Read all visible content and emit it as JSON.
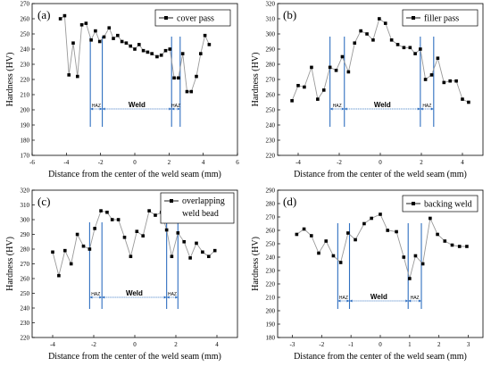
{
  "colors": {
    "series": "#000000",
    "line": "#999999",
    "weld_lines": "#2f6fc0",
    "frame": "#000000"
  },
  "chart_data": [
    {
      "type": "line",
      "panel_label": "(a)",
      "legend": "cover pass",
      "xlabel": "Distance from the center of the weld seam (mm)",
      "ylabel": "Hardness (HV)",
      "xlim": [
        -6,
        6
      ],
      "ylim": [
        170,
        270
      ],
      "xticks": [
        "-6",
        "-4",
        "-2",
        "0",
        "2",
        "4",
        "6"
      ],
      "yticks": [
        "170",
        "180",
        "190",
        "200",
        "210",
        "220",
        "230",
        "240",
        "250",
        "260",
        "270"
      ],
      "x": [
        -4.35,
        -4.1,
        -3.85,
        -3.6,
        -3.35,
        -3.1,
        -2.85,
        -2.55,
        -2.3,
        -2.05,
        -1.8,
        -1.5,
        -1.25,
        -1.0,
        -0.75,
        -0.5,
        -0.25,
        0.0,
        0.25,
        0.5,
        0.75,
        1.0,
        1.3,
        1.55,
        1.8,
        2.05,
        2.3,
        2.55,
        2.8,
        3.05,
        3.3,
        3.6,
        3.85,
        4.1,
        4.35
      ],
      "y": [
        260,
        262,
        223,
        244,
        222,
        256,
        257,
        246,
        252,
        245,
        248,
        254,
        247,
        249,
        245,
        244,
        242,
        240,
        243,
        239,
        238,
        237,
        235,
        236,
        239,
        240,
        221,
        221,
        237,
        212,
        212,
        222,
        237,
        249,
        243
      ],
      "regions": {
        "haz_left": [
          -2.6,
          -1.9
        ],
        "haz_right": [
          2.15,
          2.65
        ],
        "weld": [
          -1.9,
          2.15
        ]
      },
      "region_labels": {
        "haz": "HAZ",
        "weld": "Weld"
      }
    },
    {
      "type": "line",
      "panel_label": "(b)",
      "legend": "filler pass",
      "xlabel": "Distance from the center of the weld seam (mm)",
      "ylabel": "Hardness (HV)",
      "xlim": [
        -5,
        5
      ],
      "ylim": [
        220,
        320
      ],
      "xticks": [
        "-4",
        "-2",
        "0",
        "2",
        "4"
      ],
      "yticks": [
        "220",
        "230",
        "240",
        "250",
        "260",
        "270",
        "280",
        "290",
        "300",
        "310",
        "320"
      ],
      "x": [
        -4.3,
        -4.0,
        -3.7,
        -3.35,
        -3.05,
        -2.75,
        -2.45,
        -2.15,
        -1.85,
        -1.55,
        -1.25,
        -0.95,
        -0.65,
        -0.35,
        -0.05,
        0.25,
        0.55,
        0.85,
        1.15,
        1.45,
        1.7,
        1.95,
        2.2,
        2.5,
        2.8,
        3.1,
        3.4,
        3.7,
        4.0,
        4.3
      ],
      "y": [
        256,
        266,
        265,
        278,
        257,
        263,
        278,
        276,
        285,
        275,
        294,
        302,
        300,
        296,
        310,
        307,
        296,
        293,
        291,
        291,
        287,
        290,
        270,
        273,
        284,
        268,
        269,
        269,
        257,
        255
      ],
      "regions": {
        "haz_left": [
          -2.45,
          -1.75
        ],
        "haz_right": [
          1.95,
          2.6
        ],
        "weld": [
          -1.75,
          1.95
        ]
      },
      "region_labels": {
        "haz": "HAZ",
        "weld": "Weld"
      }
    },
    {
      "type": "line",
      "panel_label": "(c)",
      "legend": "overlapping weld bead",
      "xlabel": "Distance from the center of the weld seam (mm)",
      "ylabel": "Hardness (HV)",
      "xlim": [
        -5,
        5
      ],
      "ylim": [
        220,
        320
      ],
      "xticks": [
        "-4",
        "-2",
        "0",
        "2",
        "4"
      ],
      "yticks": [
        "220",
        "230",
        "240",
        "250",
        "260",
        "270",
        "280",
        "290",
        "300",
        "310",
        "320"
      ],
      "x": [
        -4.0,
        -3.7,
        -3.4,
        -3.1,
        -2.8,
        -2.5,
        -2.2,
        -1.95,
        -1.65,
        -1.35,
        -1.1,
        -0.8,
        -0.5,
        -0.2,
        0.1,
        0.4,
        0.7,
        1.0,
        1.3,
        1.55,
        1.8,
        2.1,
        2.4,
        2.7,
        3.0,
        3.3,
        3.6,
        3.9
      ],
      "y": [
        278,
        262,
        279,
        270,
        290,
        282,
        280,
        294,
        306,
        305,
        300,
        300,
        288,
        275,
        292,
        289,
        306,
        303,
        305,
        293,
        275,
        291,
        285,
        274,
        284,
        278,
        275,
        279
      ],
      "regions": {
        "haz_left": [
          -2.2,
          -1.6
        ],
        "haz_right": [
          1.55,
          2.1
        ],
        "weld": [
          -1.6,
          1.55
        ]
      },
      "region_labels": {
        "haz": "HAZ",
        "weld": "Weld"
      }
    },
    {
      "type": "line",
      "panel_label": "(d)",
      "legend": "backing weld",
      "xlabel": "Distance from the center of the weld seam (mm)",
      "ylabel": "Hardness (HV)",
      "xlim": [
        -3.5,
        3.5
      ],
      "ylim": [
        180,
        290
      ],
      "xticks": [
        "-3",
        "-2",
        "-1",
        "0",
        "1",
        "2",
        "3"
      ],
      "yticks": [
        "180",
        "190",
        "200",
        "210",
        "220",
        "230",
        "240",
        "250",
        "260",
        "270",
        "280",
        "290"
      ],
      "x": [
        -2.85,
        -2.6,
        -2.35,
        -2.1,
        -1.85,
        -1.6,
        -1.35,
        -1.1,
        -0.85,
        -0.55,
        -0.3,
        0.0,
        0.25,
        0.55,
        0.8,
        1.0,
        1.2,
        1.45,
        1.7,
        1.95,
        2.2,
        2.45,
        2.7,
        2.95
      ],
      "y": [
        257,
        261,
        256,
        243,
        252,
        241,
        236,
        258,
        253,
        265,
        269,
        272,
        260,
        259,
        240,
        224,
        241,
        235,
        269,
        257,
        252,
        249,
        248,
        248
      ],
      "regions": {
        "haz_left": [
          -1.45,
          -1.05
        ],
        "haz_right": [
          0.95,
          1.4
        ],
        "weld": [
          -1.05,
          0.95
        ]
      },
      "region_labels": {
        "haz": "HAZ",
        "weld": "Weld"
      }
    }
  ]
}
